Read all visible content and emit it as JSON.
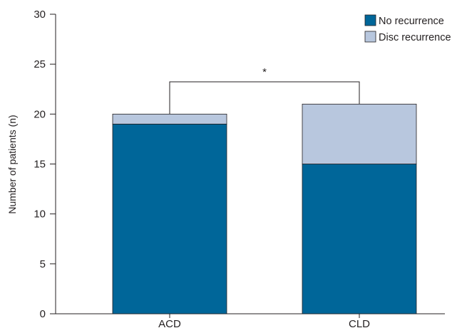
{
  "chart_data": {
    "type": "bar",
    "stacked": true,
    "categories": [
      "ACD",
      "CLD"
    ],
    "series": [
      {
        "name": "No recurrence",
        "values": [
          19,
          15
        ],
        "color": "#006699"
      },
      {
        "name": "Disc recurrence",
        "values": [
          1,
          6
        ],
        "color": "#b8c7de"
      }
    ],
    "title": "",
    "xlabel": "",
    "ylabel": "Number of patients (n)",
    "ylim": [
      0,
      30
    ],
    "yticks": [
      0,
      5,
      10,
      15,
      20,
      25,
      30
    ],
    "grid": false,
    "legend": "top-right",
    "annotations": [
      {
        "type": "significance-bracket",
        "between": [
          "ACD",
          "CLD"
        ],
        "label": "*"
      }
    ]
  }
}
